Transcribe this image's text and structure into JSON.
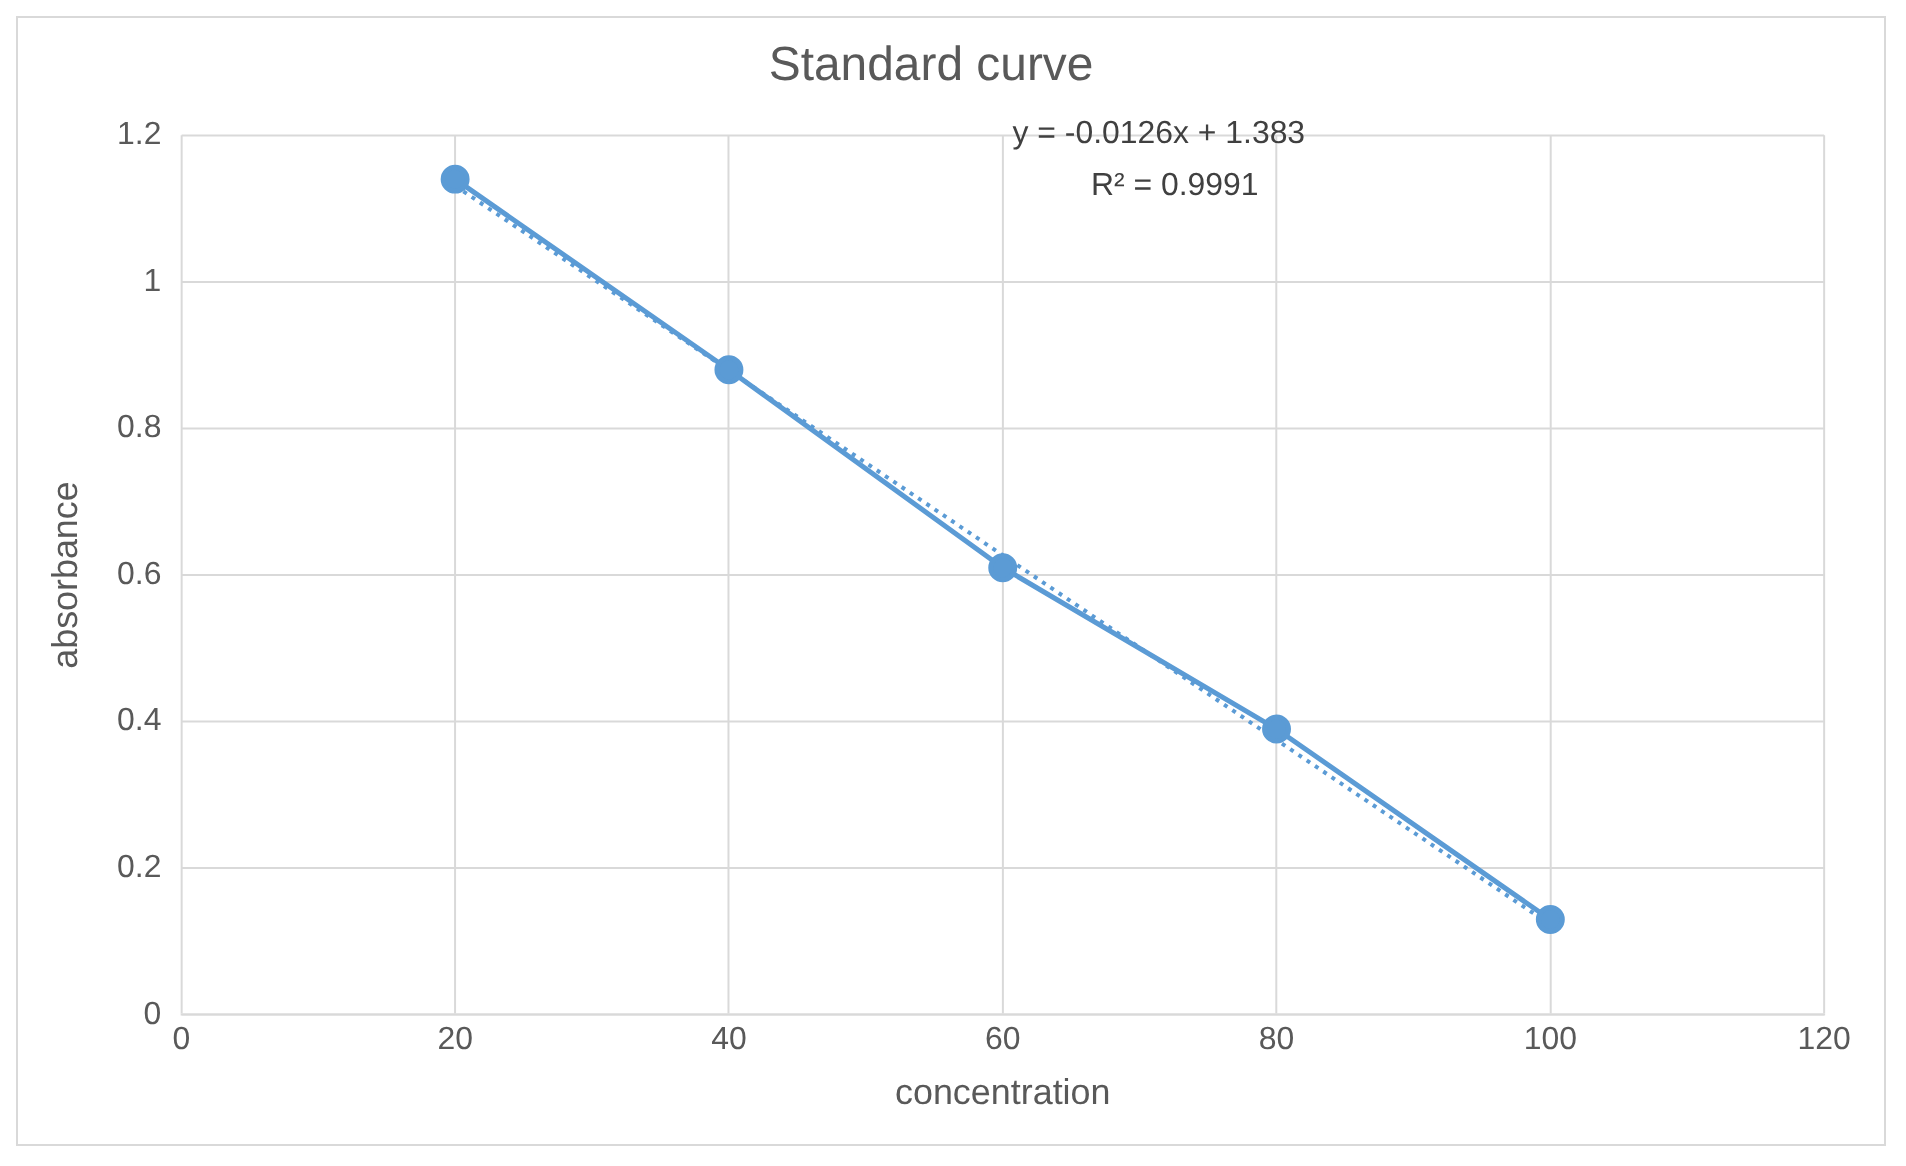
{
  "chart_data": {
    "type": "line",
    "title": "Standard curve",
    "xlabel": "concentration",
    "ylabel": "absorbance",
    "x": [
      20,
      40,
      60,
      80,
      100
    ],
    "series": [
      {
        "color": "#5b9bd5",
        "values": [
          1.14,
          0.88,
          0.61,
          0.39,
          0.13
        ],
        "marker": "circle",
        "line_style": "solid"
      },
      {
        "type": "line",
        "color": "#5b9bd5",
        "x": [
          20,
          100
        ],
        "values": [
          1.131,
          0.123
        ],
        "marker": "none",
        "line_style": "dotted"
      }
    ],
    "xlim": [
      0,
      120
    ],
    "xticks": [
      0,
      20,
      40,
      60,
      80,
      100,
      120
    ],
    "ylim": [
      0,
      1.2
    ],
    "yticks": [
      0,
      0.2,
      0.4,
      0.6,
      0.8,
      1,
      1.2
    ],
    "grid": true,
    "legend": false,
    "annotations": [
      "y = -0.0126x + 1.383",
      "R² = 0.9991"
    ]
  }
}
